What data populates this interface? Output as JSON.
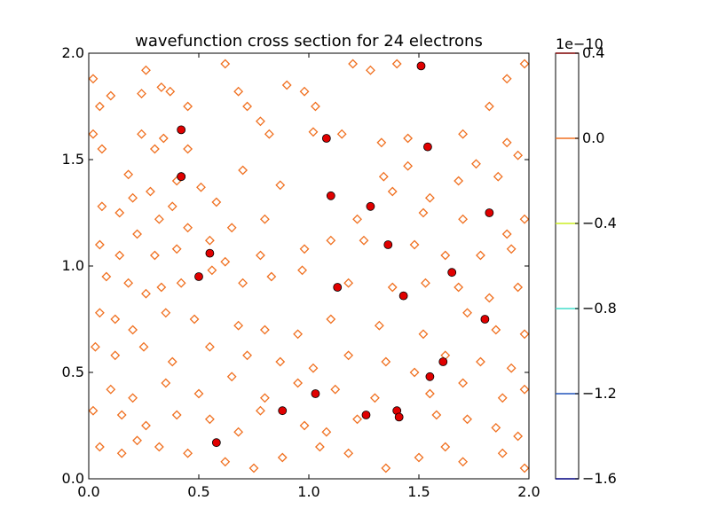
{
  "chart_data": {
    "type": "scatter",
    "title": "wavefunction cross section for 24 electrons",
    "xlabel": "",
    "ylabel": "",
    "xlim": [
      0.0,
      2.0
    ],
    "ylim": [
      0.0,
      2.0
    ],
    "x_ticks": [
      "0.0",
      "0.5",
      "1.0",
      "1.5",
      "2.0"
    ],
    "y_ticks": [
      "0.0",
      "0.5",
      "1.0",
      "1.5",
      "2.0"
    ],
    "grid": false,
    "electron_color": "#e00000",
    "contour_color": "#f07020",
    "electrons": {
      "x": [
        0.42,
        0.42,
        1.08,
        1.51,
        1.54,
        1.1,
        1.28,
        1.82,
        0.55,
        1.36,
        0.5,
        1.65,
        1.13,
        1.43,
        1.8,
        1.61,
        1.55,
        1.03,
        0.88,
        1.26,
        1.4,
        1.41,
        0.58,
        0.42
      ],
      "y": [
        1.64,
        1.42,
        1.6,
        1.94,
        1.56,
        1.33,
        1.28,
        1.25,
        1.06,
        1.1,
        0.95,
        0.97,
        0.9,
        0.86,
        0.75,
        0.55,
        0.48,
        0.4,
        0.32,
        0.3,
        0.32,
        0.29,
        0.17,
        1.42
      ]
    },
    "contour_markers": [
      [
        0.02,
        1.88
      ],
      [
        0.1,
        1.8
      ],
      [
        0.05,
        1.75
      ],
      [
        0.24,
        1.81
      ],
      [
        0.26,
        1.92
      ],
      [
        0.33,
        1.84
      ],
      [
        0.37,
        1.82
      ],
      [
        0.45,
        1.75
      ],
      [
        0.62,
        1.95
      ],
      [
        0.68,
        1.82
      ],
      [
        0.72,
        1.75
      ],
      [
        0.9,
        1.85
      ],
      [
        0.98,
        1.82
      ],
      [
        1.03,
        1.75
      ],
      [
        1.2,
        1.95
      ],
      [
        1.28,
        1.92
      ],
      [
        1.4,
        1.95
      ],
      [
        1.82,
        1.75
      ],
      [
        1.9,
        1.88
      ],
      [
        1.98,
        1.95
      ],
      [
        0.02,
        1.62
      ],
      [
        0.06,
        1.55
      ],
      [
        0.24,
        1.62
      ],
      [
        0.3,
        1.55
      ],
      [
        0.34,
        1.6
      ],
      [
        0.45,
        1.55
      ],
      [
        0.78,
        1.68
      ],
      [
        0.82,
        1.62
      ],
      [
        1.02,
        1.63
      ],
      [
        1.15,
        1.62
      ],
      [
        1.33,
        1.58
      ],
      [
        1.45,
        1.6
      ],
      [
        1.7,
        1.62
      ],
      [
        1.9,
        1.58
      ],
      [
        1.95,
        1.52
      ],
      [
        0.18,
        1.43
      ],
      [
        0.28,
        1.35
      ],
      [
        0.4,
        1.4
      ],
      [
        0.51,
        1.37
      ],
      [
        0.7,
        1.45
      ],
      [
        0.87,
        1.38
      ],
      [
        1.34,
        1.42
      ],
      [
        1.45,
        1.47
      ],
      [
        1.55,
        1.32
      ],
      [
        1.68,
        1.4
      ],
      [
        1.76,
        1.48
      ],
      [
        1.86,
        1.42
      ],
      [
        0.06,
        1.28
      ],
      [
        0.14,
        1.25
      ],
      [
        0.2,
        1.32
      ],
      [
        0.32,
        1.22
      ],
      [
        0.38,
        1.28
      ],
      [
        0.45,
        1.18
      ],
      [
        0.58,
        1.3
      ],
      [
        0.65,
        1.18
      ],
      [
        0.8,
        1.22
      ],
      [
        1.22,
        1.22
      ],
      [
        1.38,
        1.35
      ],
      [
        1.52,
        1.25
      ],
      [
        1.7,
        1.22
      ],
      [
        1.9,
        1.15
      ],
      [
        1.98,
        1.22
      ],
      [
        0.05,
        1.1
      ],
      [
        0.14,
        1.05
      ],
      [
        0.22,
        1.15
      ],
      [
        0.3,
        1.05
      ],
      [
        0.4,
        1.08
      ],
      [
        0.55,
        1.12
      ],
      [
        0.62,
        1.02
      ],
      [
        0.78,
        1.05
      ],
      [
        0.98,
        1.08
      ],
      [
        1.1,
        1.12
      ],
      [
        1.25,
        1.12
      ],
      [
        1.48,
        1.1
      ],
      [
        1.62,
        1.05
      ],
      [
        1.78,
        1.05
      ],
      [
        1.92,
        1.08
      ],
      [
        0.08,
        0.95
      ],
      [
        0.18,
        0.92
      ],
      [
        0.26,
        0.87
      ],
      [
        0.33,
        0.9
      ],
      [
        0.42,
        0.92
      ],
      [
        0.56,
        0.98
      ],
      [
        0.7,
        0.92
      ],
      [
        0.83,
        0.95
      ],
      [
        0.97,
        0.98
      ],
      [
        1.18,
        0.92
      ],
      [
        1.38,
        0.9
      ],
      [
        1.53,
        0.92
      ],
      [
        1.68,
        0.9
      ],
      [
        1.82,
        0.85
      ],
      [
        1.95,
        0.9
      ],
      [
        0.05,
        0.78
      ],
      [
        0.12,
        0.75
      ],
      [
        0.2,
        0.7
      ],
      [
        0.35,
        0.78
      ],
      [
        0.48,
        0.75
      ],
      [
        0.68,
        0.72
      ],
      [
        0.8,
        0.7
      ],
      [
        0.95,
        0.68
      ],
      [
        1.1,
        0.75
      ],
      [
        1.32,
        0.72
      ],
      [
        1.52,
        0.68
      ],
      [
        1.72,
        0.78
      ],
      [
        1.85,
        0.7
      ],
      [
        1.98,
        0.68
      ],
      [
        0.03,
        0.62
      ],
      [
        0.12,
        0.58
      ],
      [
        0.25,
        0.62
      ],
      [
        0.38,
        0.55
      ],
      [
        0.55,
        0.62
      ],
      [
        0.72,
        0.58
      ],
      [
        0.87,
        0.55
      ],
      [
        1.02,
        0.52
      ],
      [
        1.18,
        0.58
      ],
      [
        1.35,
        0.55
      ],
      [
        1.48,
        0.5
      ],
      [
        1.62,
        0.58
      ],
      [
        1.78,
        0.55
      ],
      [
        1.92,
        0.52
      ],
      [
        0.1,
        0.42
      ],
      [
        0.2,
        0.38
      ],
      [
        0.35,
        0.45
      ],
      [
        0.5,
        0.4
      ],
      [
        0.65,
        0.48
      ],
      [
        0.8,
        0.38
      ],
      [
        0.95,
        0.45
      ],
      [
        1.12,
        0.42
      ],
      [
        1.3,
        0.38
      ],
      [
        1.55,
        0.4
      ],
      [
        1.7,
        0.45
      ],
      [
        1.88,
        0.38
      ],
      [
        1.98,
        0.42
      ],
      [
        0.02,
        0.32
      ],
      [
        0.15,
        0.3
      ],
      [
        0.26,
        0.25
      ],
      [
        0.4,
        0.3
      ],
      [
        0.55,
        0.28
      ],
      [
        0.68,
        0.22
      ],
      [
        0.78,
        0.32
      ],
      [
        0.98,
        0.25
      ],
      [
        1.08,
        0.22
      ],
      [
        1.22,
        0.28
      ],
      [
        1.58,
        0.3
      ],
      [
        1.72,
        0.28
      ],
      [
        1.85,
        0.24
      ],
      [
        1.95,
        0.2
      ],
      [
        0.05,
        0.15
      ],
      [
        0.15,
        0.12
      ],
      [
        0.22,
        0.18
      ],
      [
        0.32,
        0.15
      ],
      [
        0.45,
        0.12
      ],
      [
        0.62,
        0.08
      ],
      [
        0.75,
        0.05
      ],
      [
        0.88,
        0.1
      ],
      [
        1.05,
        0.15
      ],
      [
        1.18,
        0.12
      ],
      [
        1.35,
        0.05
      ],
      [
        1.5,
        0.1
      ],
      [
        1.62,
        0.15
      ],
      [
        1.7,
        0.08
      ],
      [
        1.88,
        0.12
      ],
      [
        1.98,
        0.05
      ]
    ],
    "colorbar": {
      "offset_label": "1e−10",
      "ticks": [
        "0.4",
        "0.0",
        "−0.4",
        "−0.8",
        "−1.2",
        "−1.6"
      ],
      "tick_values": [
        0.4,
        0.0,
        -0.4,
        -0.8,
        -1.2,
        -1.6
      ],
      "level_colors": [
        "#7f0000",
        "#f07020",
        "#ccee22",
        "#44ddcc",
        "#2255bb",
        "#000080"
      ]
    }
  }
}
